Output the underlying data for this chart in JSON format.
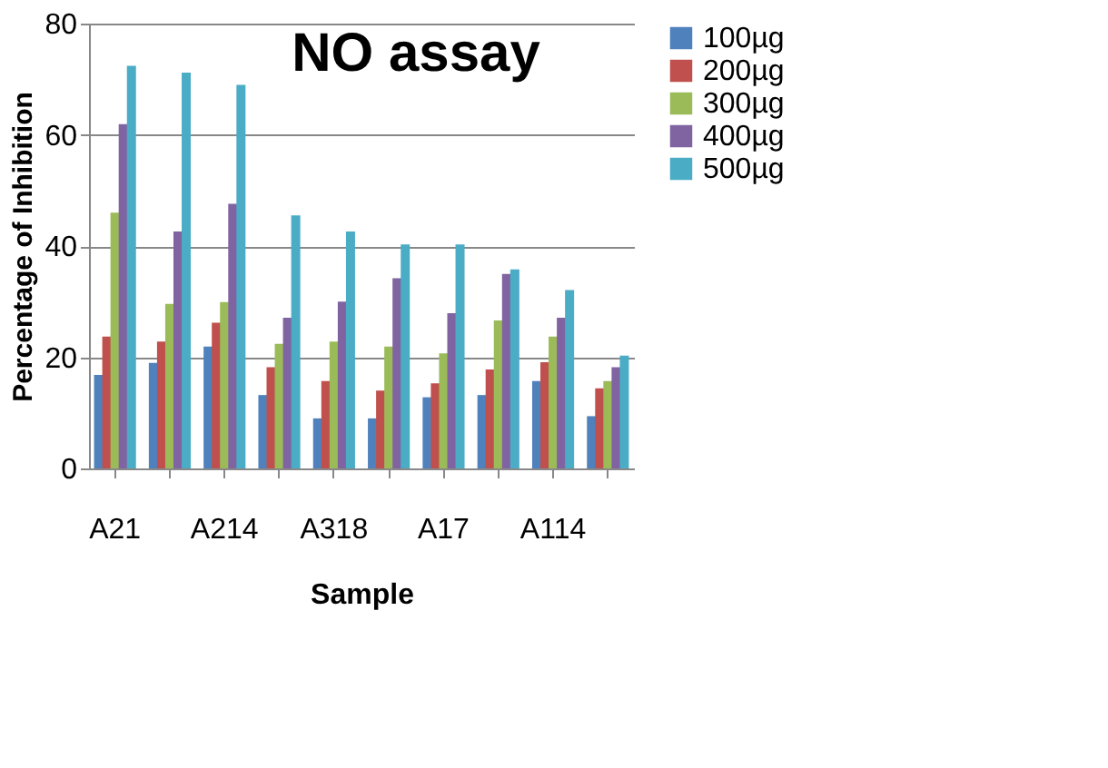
{
  "chart_data": {
    "type": "bar",
    "title": "NO assay",
    "xlabel": "Sample",
    "ylabel": "Percentage of Inhibition",
    "categories": [
      "A21",
      null,
      "A214",
      null,
      "A318",
      null,
      "A17",
      null,
      "A114",
      null
    ],
    "series": [
      {
        "name": "100µg",
        "color": "#4f81bd",
        "values": [
          16.8,
          19,
          21.9,
          13.2,
          9,
          9,
          12.8,
          13.2,
          15.7,
          9.4
        ]
      },
      {
        "name": "200µg",
        "color": "#c0504d",
        "values": [
          23.7,
          22.8,
          26.2,
          18.2,
          15.7,
          14,
          15.3,
          17.8,
          19.1,
          14.4
        ]
      },
      {
        "name": "300µg",
        "color": "#9bbb59",
        "values": [
          46,
          29.6,
          29.9,
          22.4,
          22.8,
          21.9,
          20.7,
          26.6,
          23.7,
          15.7
        ]
      },
      {
        "name": "400µg",
        "color": "#8064a2",
        "values": [
          61.9,
          42.6,
          47.6,
          27.1,
          30,
          34.2,
          27.9,
          35,
          27.1,
          18.2
        ]
      },
      {
        "name": "500µg",
        "color": "#4bacc6",
        "values": [
          72.4,
          71.2,
          69,
          45.5,
          42.6,
          40.3,
          40.3,
          35.8,
          32.1,
          20.3
        ]
      }
    ],
    "ylim": [
      0,
      80
    ],
    "yticks": [
      0,
      20,
      40,
      60,
      80
    ],
    "grid": "y",
    "legend": "right"
  }
}
